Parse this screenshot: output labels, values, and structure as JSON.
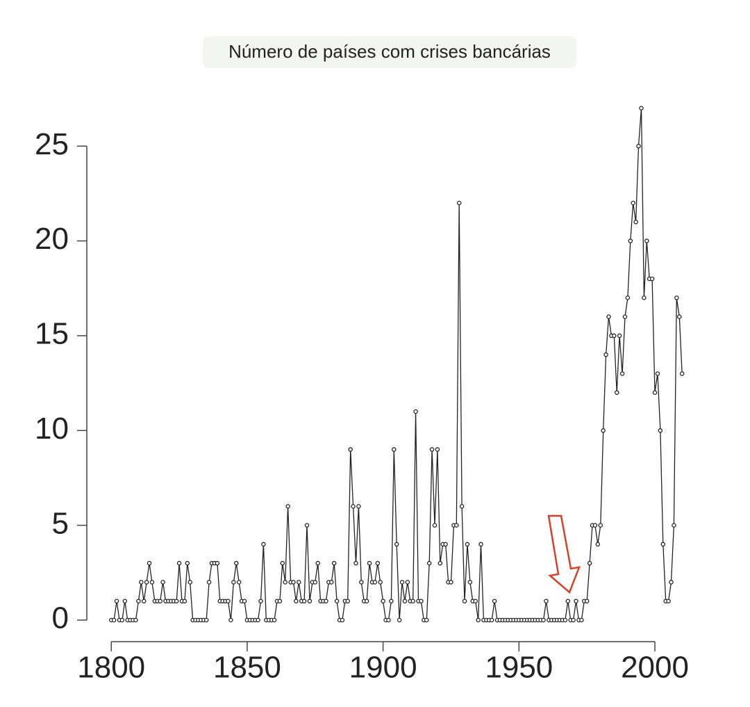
{
  "chart_data": {
    "type": "line",
    "title": "Número de países com crises bancárias",
    "x": [
      1800,
      1801,
      1802,
      1803,
      1804,
      1805,
      1806,
      1807,
      1808,
      1809,
      1810,
      1811,
      1812,
      1813,
      1814,
      1815,
      1816,
      1817,
      1818,
      1819,
      1820,
      1821,
      1822,
      1823,
      1824,
      1825,
      1826,
      1827,
      1828,
      1829,
      1830,
      1831,
      1832,
      1833,
      1834,
      1835,
      1836,
      1837,
      1838,
      1839,
      1840,
      1841,
      1842,
      1843,
      1844,
      1845,
      1846,
      1847,
      1848,
      1849,
      1850,
      1851,
      1852,
      1853,
      1854,
      1855,
      1856,
      1857,
      1858,
      1859,
      1860,
      1861,
      1862,
      1863,
      1864,
      1865,
      1866,
      1867,
      1868,
      1869,
      1870,
      1871,
      1872,
      1873,
      1874,
      1875,
      1876,
      1877,
      1878,
      1879,
      1880,
      1881,
      1882,
      1883,
      1884,
      1885,
      1886,
      1887,
      1888,
      1889,
      1890,
      1891,
      1892,
      1893,
      1894,
      1895,
      1896,
      1897,
      1898,
      1899,
      1900,
      1901,
      1902,
      1903,
      1904,
      1905,
      1906,
      1907,
      1908,
      1909,
      1910,
      1911,
      1912,
      1913,
      1914,
      1915,
      1916,
      1917,
      1918,
      1919,
      1920,
      1921,
      1922,
      1923,
      1924,
      1925,
      1926,
      1927,
      1928,
      1929,
      1930,
      1931,
      1932,
      1933,
      1934,
      1935,
      1936,
      1937,
      1938,
      1939,
      1940,
      1941,
      1942,
      1943,
      1944,
      1945,
      1946,
      1947,
      1948,
      1949,
      1950,
      1951,
      1952,
      1953,
      1954,
      1955,
      1956,
      1957,
      1958,
      1959,
      1960,
      1961,
      1962,
      1963,
      1964,
      1965,
      1966,
      1967,
      1968,
      1969,
      1970,
      1971,
      1972,
      1973,
      1974,
      1975,
      1976,
      1977,
      1978,
      1979,
      1980,
      1981,
      1982,
      1983,
      1984,
      1985,
      1986,
      1987,
      1988,
      1989,
      1990,
      1991,
      1992,
      1993,
      1994,
      1995,
      1996,
      1997,
      1998,
      1999,
      2000,
      2001,
      2002,
      2003,
      2004,
      2005,
      2006,
      2007,
      2008,
      2009,
      2010
    ],
    "values": [
      0,
      0,
      1,
      0,
      0,
      1,
      0,
      0,
      0,
      0,
      1,
      2,
      1,
      2,
      3,
      2,
      1,
      1,
      1,
      2,
      1,
      1,
      1,
      1,
      1,
      3,
      1,
      1,
      3,
      2,
      0,
      0,
      0,
      0,
      0,
      0,
      2,
      3,
      3,
      3,
      1,
      1,
      1,
      1,
      0,
      2,
      3,
      2,
      1,
      1,
      0,
      0,
      0,
      0,
      0,
      1,
      4,
      0,
      0,
      0,
      0,
      1,
      1,
      3,
      2,
      6,
      2,
      2,
      1,
      2,
      1,
      1,
      5,
      1,
      2,
      2,
      3,
      1,
      1,
      1,
      2,
      2,
      3,
      1,
      0,
      0,
      1,
      1,
      9,
      6,
      3,
      6,
      2,
      1,
      1,
      3,
      2,
      2,
      3,
      2,
      1,
      0,
      0,
      1,
      9,
      4,
      0,
      2,
      1,
      2,
      1,
      1,
      11,
      1,
      1,
      0,
      0,
      3,
      9,
      5,
      9,
      3,
      4,
      4,
      2,
      2,
      5,
      5,
      22,
      6,
      1,
      4,
      2,
      1,
      1,
      0,
      4,
      0,
      0,
      0,
      0,
      1,
      0,
      0,
      0,
      0,
      0,
      0,
      0,
      0,
      0,
      0,
      0,
      0,
      0,
      0,
      0,
      0,
      0,
      0,
      1,
      0,
      0,
      0,
      0,
      0,
      0,
      0,
      1,
      0,
      0,
      1,
      0,
      0,
      1,
      1,
      3,
      5,
      5,
      4,
      5,
      10,
      14,
      16,
      15,
      15,
      12,
      15,
      13,
      16,
      17,
      20,
      22,
      21,
      25,
      27,
      17,
      20,
      18,
      18,
      12,
      13,
      10,
      4,
      1,
      1,
      2,
      5,
      17,
      16,
      13
    ],
    "color": "#222222",
    "xlim": [
      1791,
      2012
    ],
    "xticks": [
      1800,
      1850,
      1900,
      1950,
      2000
    ],
    "ylim": [
      0,
      27.5
    ],
    "yticks": [
      0,
      5,
      10,
      15,
      20,
      25
    ]
  }
}
